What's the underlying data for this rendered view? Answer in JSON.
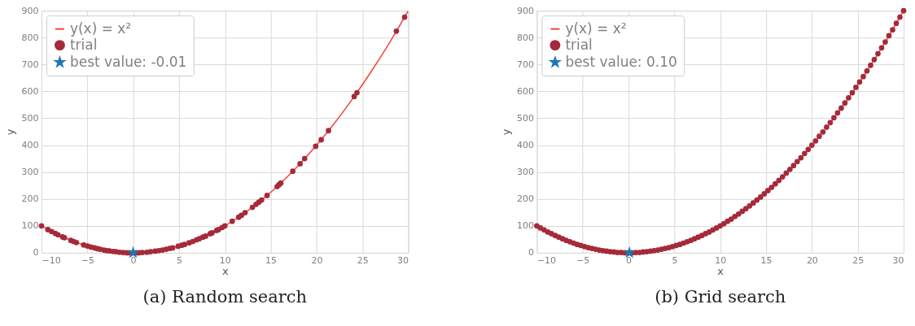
{
  "chart_data": [
    {
      "type": "scatter",
      "title": "(a) Random search",
      "xlabel": "x",
      "ylabel": "y",
      "xlim": [
        -10,
        30
      ],
      "ylim": [
        0,
        900
      ],
      "xticks": [
        -10,
        -5,
        0,
        5,
        10,
        15,
        20,
        25,
        30
      ],
      "yticks": [
        0,
        100,
        200,
        300,
        400,
        500,
        600,
        700,
        800,
        900
      ],
      "grid": true,
      "legend": "top left",
      "series": [
        {
          "name": "y(x) = x²",
          "type": "line",
          "color": "#f0453a",
          "marker": "none",
          "x": [
            -10,
            -8,
            -6,
            -4,
            -2,
            0,
            2,
            4,
            6,
            8,
            10,
            12,
            14,
            16,
            18,
            20,
            22,
            24,
            26,
            28,
            30
          ],
          "values": [
            100,
            64,
            36,
            16,
            4,
            0,
            4,
            16,
            36,
            64,
            100,
            144,
            196,
            256,
            324,
            400,
            484,
            576,
            676,
            784,
            900
          ]
        },
        {
          "name": "trial",
          "type": "scatter",
          "color": "#a52a3a",
          "marker": "circle",
          "x": [
            -10,
            -9.3,
            -8.9,
            -8.5,
            -8.2,
            -7.7,
            -7.5,
            -6.8,
            -6.5,
            -6.2,
            -5.4,
            -5,
            -4.6,
            -4.2,
            -3.9,
            -3.6,
            -3.2,
            -2.9,
            -2.6,
            -2.2,
            -1.9,
            -1.5,
            -1.1,
            -0.7,
            -0.4,
            0.3,
            0.6,
            1,
            1.5,
            1.9,
            2.4,
            2.8,
            3.2,
            3.6,
            4,
            4.3,
            4.9,
            5.3,
            5.6,
            6.1,
            6.5,
            6.9,
            7.2,
            7.6,
            7.9,
            8.4,
            8.6,
            9.1,
            9.3,
            9.7,
            10,
            10.8,
            11.5,
            11.8,
            12.2,
            13,
            13.4,
            13.7,
            14,
            14.6,
            15.7,
            15.9,
            16.1,
            17.4,
            18.2,
            18.7,
            19.9,
            20.5,
            21.3,
            24.1,
            24.4,
            28.7,
            29.6
          ],
          "values": [
            100,
            86,
            79,
            72,
            67,
            59,
            56,
            46,
            42,
            38,
            29,
            25,
            21,
            18,
            15,
            13,
            10,
            8,
            7,
            5,
            4,
            2,
            1,
            0,
            0,
            0,
            0,
            1,
            2,
            4,
            6,
            8,
            10,
            13,
            16,
            18,
            24,
            28,
            31,
            37,
            42,
            48,
            52,
            58,
            62,
            71,
            74,
            83,
            86,
            94,
            100,
            117,
            132,
            139,
            149,
            169,
            180,
            188,
            196,
            213,
            246,
            253,
            259,
            303,
            331,
            350,
            396,
            420,
            454,
            581,
            595,
            824,
            876
          ]
        },
        {
          "name": "best value: -0.01",
          "type": "scatter",
          "color": "#1f77b4",
          "marker": "star",
          "x": [
            -0.01
          ],
          "values": [
            0
          ]
        }
      ]
    },
    {
      "type": "scatter",
      "title": "(b) Grid search",
      "xlabel": "x",
      "ylabel": "y",
      "xlim": [
        -10,
        30
      ],
      "ylim": [
        0,
        900
      ],
      "xticks": [
        -10,
        -5,
        0,
        5,
        10,
        15,
        20,
        25,
        30
      ],
      "yticks": [
        0,
        100,
        200,
        300,
        400,
        500,
        600,
        700,
        800,
        900
      ],
      "grid": true,
      "legend": "top left",
      "series": [
        {
          "name": "y(x) = x²",
          "type": "line",
          "color": "#f0453a",
          "marker": "none",
          "x": [
            22,
            24,
            26,
            28,
            30
          ],
          "values": [
            484,
            576,
            676,
            784,
            900
          ]
        },
        {
          "name": "trial",
          "type": "scatter",
          "color": "#a52a3a",
          "marker": "circle",
          "x": [
            -10,
            -9.6,
            -9.2,
            -8.8,
            -8.4,
            -8,
            -7.6,
            -7.2,
            -6.8,
            -6.4,
            -6,
            -5.6,
            -5.2,
            -4.8,
            -4.4,
            -4,
            -3.6,
            -3.2,
            -2.8,
            -2.4,
            -2,
            -1.6,
            -1.2,
            -0.8,
            -0.4,
            0,
            0.4,
            0.8,
            1.2,
            1.6,
            2,
            2.4,
            2.8,
            3.2,
            3.6,
            4,
            4.4,
            4.8,
            5.2,
            5.6,
            6,
            6.4,
            6.8,
            7.2,
            7.6,
            8,
            8.4,
            8.8,
            9.2,
            9.6,
            10,
            10.4,
            10.8,
            11.2,
            11.6,
            12,
            12.4,
            12.8,
            13.2,
            13.6,
            14,
            14.4,
            14.8,
            15.2,
            15.6,
            16,
            16.4,
            16.8,
            17.2,
            17.6,
            18,
            18.4,
            18.8,
            19.2,
            19.6,
            20,
            20.4,
            20.8,
            21.2,
            21.6,
            22,
            22.4,
            22.8,
            23.2,
            23.6,
            24,
            24.4,
            24.8,
            25.2,
            25.6,
            26,
            26.4,
            26.8,
            27.2,
            27.6,
            28,
            28.4,
            28.8,
            29.2,
            29.6,
            30
          ],
          "values": [
            100,
            92,
            85,
            77,
            71,
            64,
            58,
            52,
            46,
            41,
            36,
            31,
            27,
            23,
            19,
            16,
            13,
            10,
            8,
            6,
            4,
            3,
            1,
            1,
            0,
            0,
            0,
            1,
            1,
            3,
            4,
            6,
            8,
            10,
            13,
            16,
            19,
            23,
            27,
            31,
            36,
            41,
            46,
            52,
            58,
            64,
            71,
            77,
            85,
            92,
            100,
            108,
            117,
            125,
            135,
            144,
            154,
            164,
            174,
            185,
            196,
            207,
            219,
            231,
            243,
            256,
            269,
            282,
            296,
            310,
            324,
            339,
            353,
            369,
            384,
            400,
            416,
            433,
            449,
            467,
            484,
            502,
            520,
            538,
            557,
            576,
            595,
            615,
            635,
            655,
            676,
            697,
            718,
            740,
            762,
            784,
            807,
            829,
            853,
            876,
            900
          ]
        },
        {
          "name": "best value: 0.10",
          "type": "scatter",
          "color": "#1f77b4",
          "marker": "star",
          "x": [
            0.1
          ],
          "values": [
            0
          ]
        }
      ]
    }
  ]
}
